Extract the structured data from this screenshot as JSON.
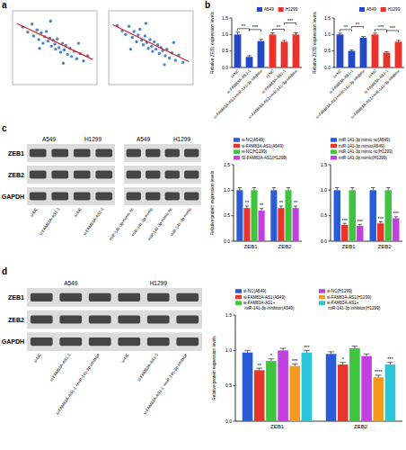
{
  "panels": [
    "a",
    "b",
    "c",
    "d"
  ],
  "chart_data": [
    {
      "type": "scatter",
      "color": "#2f6fb5",
      "tick_labels": false,
      "xlim": [
        0,
        10
      ],
      "ylim": [
        0,
        10
      ],
      "x": [
        1.2,
        1.8,
        2.3,
        2.5,
        2.9,
        3.1,
        3.4,
        3.6,
        3.8,
        4.0,
        4.2,
        4.4,
        4.6,
        4.8,
        5.0,
        5.1,
        5.3,
        5.5,
        5.7,
        5.9,
        6.1,
        6.3,
        6.5,
        6.8,
        7.0,
        7.3,
        7.6,
        8.0,
        8.4,
        8.9,
        4.5,
        6.0,
        3.2,
        7.8
      ],
      "values": [
        7.8,
        7.1,
        8.2,
        6.6,
        7.4,
        6.1,
        7.0,
        5.6,
        6.5,
        7.2,
        5.9,
        6.3,
        5.2,
        6.0,
        5.5,
        4.8,
        6.2,
        5.0,
        4.4,
        5.6,
        4.7,
        5.3,
        4.1,
        4.9,
        3.8,
        4.5,
        3.5,
        4.2,
        3.2,
        3.9,
        8.6,
        2.9,
        4.9,
        5.6
      ],
      "fit_x": [
        0.5,
        9.5
      ],
      "fit_values": [
        8.3,
        3.4
      ]
    },
    {
      "type": "scatter",
      "color": "#2f6fb5",
      "tick_labels": false,
      "xlim": [
        0,
        10
      ],
      "ylim": [
        0,
        10
      ],
      "x": [
        1.0,
        1.6,
        2.0,
        2.4,
        2.8,
        3.0,
        3.3,
        3.5,
        3.7,
        3.9,
        4.1,
        4.3,
        4.5,
        4.7,
        4.9,
        5.1,
        5.2,
        5.4,
        5.6,
        5.8,
        6.0,
        6.2,
        6.4,
        6.7,
        6.9,
        7.2,
        7.5,
        7.9,
        8.3,
        8.8,
        4.4,
        6.6,
        2.6,
        7.7
      ],
      "values": [
        8.0,
        7.3,
        6.8,
        7.9,
        6.4,
        7.2,
        5.8,
        6.7,
        7.5,
        6.0,
        5.4,
        6.6,
        5.7,
        4.9,
        6.1,
        5.2,
        4.5,
        5.8,
        4.8,
        5.4,
        4.2,
        5.0,
        4.6,
        3.9,
        4.8,
        3.6,
        4.3,
        3.3,
        4.0,
        3.0,
        8.3,
        2.7,
        4.8,
        5.7
      ],
      "fit_x": [
        0.5,
        9.5
      ],
      "fit_values": [
        8.1,
        3.1
      ]
    },
    {
      "type": "bar",
      "stacked": true,
      "legend": "top-right",
      "y_label": "Relative ZEB1 expression levels",
      "categories": [
        "si-NC",
        "si-FAM83A-AS1-1",
        "si-FAM83A-AS1+miR-141-3p inhibitor",
        "si-NC",
        "si-FAM83A-AS1-1",
        "si-FAM83A-AS1+miR-141-3p inhibitor"
      ],
      "series": [
        {
          "name": "A549",
          "color": "#2349c9",
          "values": [
            1.0,
            0.32,
            0.8,
            null,
            null,
            null
          ],
          "errors": [
            0.07,
            0.04,
            0.05,
            null,
            null,
            null
          ]
        },
        {
          "name": "H1299",
          "color": "#e8342c",
          "values": [
            null,
            null,
            null,
            1.0,
            0.78,
            1.0
          ],
          "errors": [
            null,
            null,
            null,
            0.05,
            0.04,
            0.05
          ]
        }
      ],
      "ylim": [
        0,
        1.5
      ],
      "yticks": [
        {
          "value": 0,
          "label": "0.0"
        },
        0.5,
        {
          "value": 1,
          "label": "1.0"
        },
        1.5
      ],
      "comparisons": [
        {
          "pair": [
            0,
            1
          ],
          "label": "**"
        },
        {
          "pair": [
            1,
            2
          ],
          "label": "***"
        },
        {
          "pair": [
            3,
            4
          ],
          "label": "**"
        },
        {
          "pair": [
            4,
            5
          ],
          "label": "***"
        }
      ]
    },
    {
      "type": "bar",
      "stacked": true,
      "legend": "top-right",
      "y_label": "Relative ZEB2 expression levels",
      "categories": [
        "si-NC",
        "si-FAM83A-AS1-1",
        "si-FAM83A-AS1+miR-141-3p inhibitor",
        "si-NC",
        "si-FAM83A-AS1-1",
        "si-FAM83A-AS1+miR-141-3p inhibitor"
      ],
      "series": [
        {
          "name": "A549",
          "color": "#2349c9",
          "values": [
            1.0,
            0.5,
            0.9,
            null,
            null,
            null
          ],
          "errors": [
            0.04,
            0.03,
            0.04,
            null,
            null,
            null
          ]
        },
        {
          "name": "H1299",
          "color": "#e8342c",
          "values": [
            null,
            null,
            null,
            1.0,
            0.45,
            0.78
          ],
          "errors": [
            null,
            null,
            null,
            0.04,
            0.03,
            0.04
          ]
        }
      ],
      "ylim": [
        0,
        1.5
      ],
      "yticks": [
        {
          "value": 0,
          "label": "0.0"
        },
        0.5,
        {
          "value": 1,
          "label": "1.0"
        },
        1.5
      ],
      "comparisons": [
        {
          "pair": [
            0,
            1
          ],
          "label": "**"
        },
        {
          "pair": [
            1,
            2
          ],
          "label": "**"
        },
        {
          "pair": [
            3,
            4
          ],
          "label": "***"
        },
        {
          "pair": [
            4,
            5
          ],
          "label": "***"
        }
      ]
    },
    {
      "type": "bar",
      "legend": "top",
      "y_label": "Relative protein expression levels",
      "categories": [
        "ZEB1",
        "ZEB2"
      ],
      "series": [
        {
          "name": "si-NC(A549)",
          "color": "#2b5cd8",
          "values": [
            1.0,
            1.0
          ],
          "errors": [
            0.05,
            0.05
          ]
        },
        {
          "name": "si-FAM83A-AS1(A549)",
          "color": "#e8352b",
          "values": [
            0.65,
            0.65
          ],
          "errors": [
            0.04,
            0.04
          ],
          "significance": [
            "**",
            "**"
          ]
        },
        {
          "name": "si-NC(H1299)",
          "color": "#3ec43e",
          "values": [
            1.0,
            1.0
          ],
          "errors": [
            0.05,
            0.05
          ]
        },
        {
          "name": "SI-FAM83A-AS1(H1299)",
          "color": "#c23fe0",
          "values": [
            0.6,
            0.65
          ],
          "errors": [
            0.04,
            0.04
          ],
          "significance": [
            "**",
            "**"
          ]
        }
      ],
      "ylim": [
        0,
        1.5
      ],
      "yticks": [
        {
          "value": 0,
          "label": "0.0"
        },
        0.5,
        {
          "value": 1,
          "label": "1.0"
        },
        1.5
      ]
    },
    {
      "type": "bar",
      "legend": "top",
      "categories": [
        "ZEB1",
        "ZEB2"
      ],
      "series": [
        {
          "name": "miR-141-3p mimic nc(A549)",
          "color": "#2b5cd8",
          "values": [
            1.0,
            1.0
          ],
          "errors": [
            0.05,
            0.05
          ]
        },
        {
          "name": "miR-141-3p mimic(A549)",
          "color": "#e8352b",
          "values": [
            0.32,
            0.35
          ],
          "errors": [
            0.03,
            0.03
          ],
          "significance": [
            "***",
            "***"
          ]
        },
        {
          "name": "miR-141-3p mimic nc(H1299)",
          "color": "#3ec43e",
          "values": [
            1.0,
            1.0
          ],
          "errors": [
            0.05,
            0.05
          ]
        },
        {
          "name": "miR-141-3p mimic(H1299)",
          "color": "#c23fe0",
          "values": [
            0.3,
            0.45
          ],
          "errors": [
            0.03,
            0.03
          ],
          "significance": [
            "***",
            "***"
          ]
        }
      ],
      "ylim": [
        0,
        1.5
      ],
      "yticks": [
        {
          "value": 0,
          "label": "0.0"
        },
        0.5,
        {
          "value": 1,
          "label": "1.0"
        },
        1.5
      ]
    },
    {
      "type": "bar",
      "legend": "top",
      "y_label": "Relative protein expression levels",
      "categories": [
        "ZEB1",
        "ZEB2"
      ],
      "series": [
        {
          "name": "si-NC(A549)",
          "color": "#2b5cd8",
          "values": [
            0.97,
            0.95
          ],
          "errors": [
            0.03,
            0.03
          ]
        },
        {
          "name": "si-FAM83A-AS1(A549)",
          "color": "#e8352b",
          "values": [
            0.72,
            0.8
          ],
          "errors": [
            0.03,
            0.03
          ],
          "significance": [
            "**",
            "*"
          ]
        },
        {
          "name": "si-FAM83A-AS1+ miR-141-3p inhibitor(A549)",
          "color": "#3ec43e",
          "values": [
            0.85,
            1.03
          ],
          "errors": [
            0.03,
            0.03
          ],
          "significance": [
            "*",
            null
          ]
        },
        {
          "name": "si-NC(H1299)",
          "color": "#c23fe0",
          "values": [
            1.0,
            0.92
          ],
          "errors": [
            0.03,
            0.03
          ]
        },
        {
          "name": "si-FAM83A-AS1(H1299)",
          "color": "#f59a1c",
          "values": [
            0.78,
            0.62
          ],
          "errors": [
            0.03,
            0.03
          ],
          "significance": [
            "***",
            "****"
          ]
        },
        {
          "name": "si-FAM83A-AS1+ miR-141-3p inhibitor(H1299)",
          "color": "#29c5d8",
          "values": [
            0.97,
            0.8
          ],
          "errors": [
            0.03,
            0.03
          ],
          "significance": [
            "***",
            "***"
          ]
        }
      ],
      "ylim": [
        0,
        1.5
      ],
      "yticks": [
        {
          "value": 0,
          "label": "0.0"
        },
        0.5,
        {
          "value": 1,
          "label": "1.0"
        },
        1.5
      ]
    }
  ],
  "blots": [
    {
      "headers": [
        "A549",
        "H1299"
      ],
      "rows": [
        "ZEB1",
        "ZEB2",
        "GAPDH"
      ],
      "lanes": [
        "si-NC",
        "si-FAM83A-AS1-1",
        "si-NC",
        "si-FAM83A-AS1-1"
      ]
    },
    {
      "headers": [
        "A549",
        "H1299"
      ],
      "lanes": [
        "miR-141-3p mimic nc",
        "miR-141-3p mimic",
        "miR-141-3p mimic nc",
        "miR-141-3p mimic"
      ]
    },
    {
      "headers": [
        "A549",
        "H1299"
      ],
      "rows": [
        "ZEB1",
        "ZEB2",
        "GAPDH"
      ],
      "lanes": [
        "si-NC",
        "si-FAM83A-AS1-1",
        "si-FAM83A-AS1-1 +miR-141-3p inhibitor",
        "si-NC",
        "si-FAM83A-AS1-1",
        "si-FAM83A-AS1-1 +miR-141-3p inhibitor"
      ]
    }
  ]
}
